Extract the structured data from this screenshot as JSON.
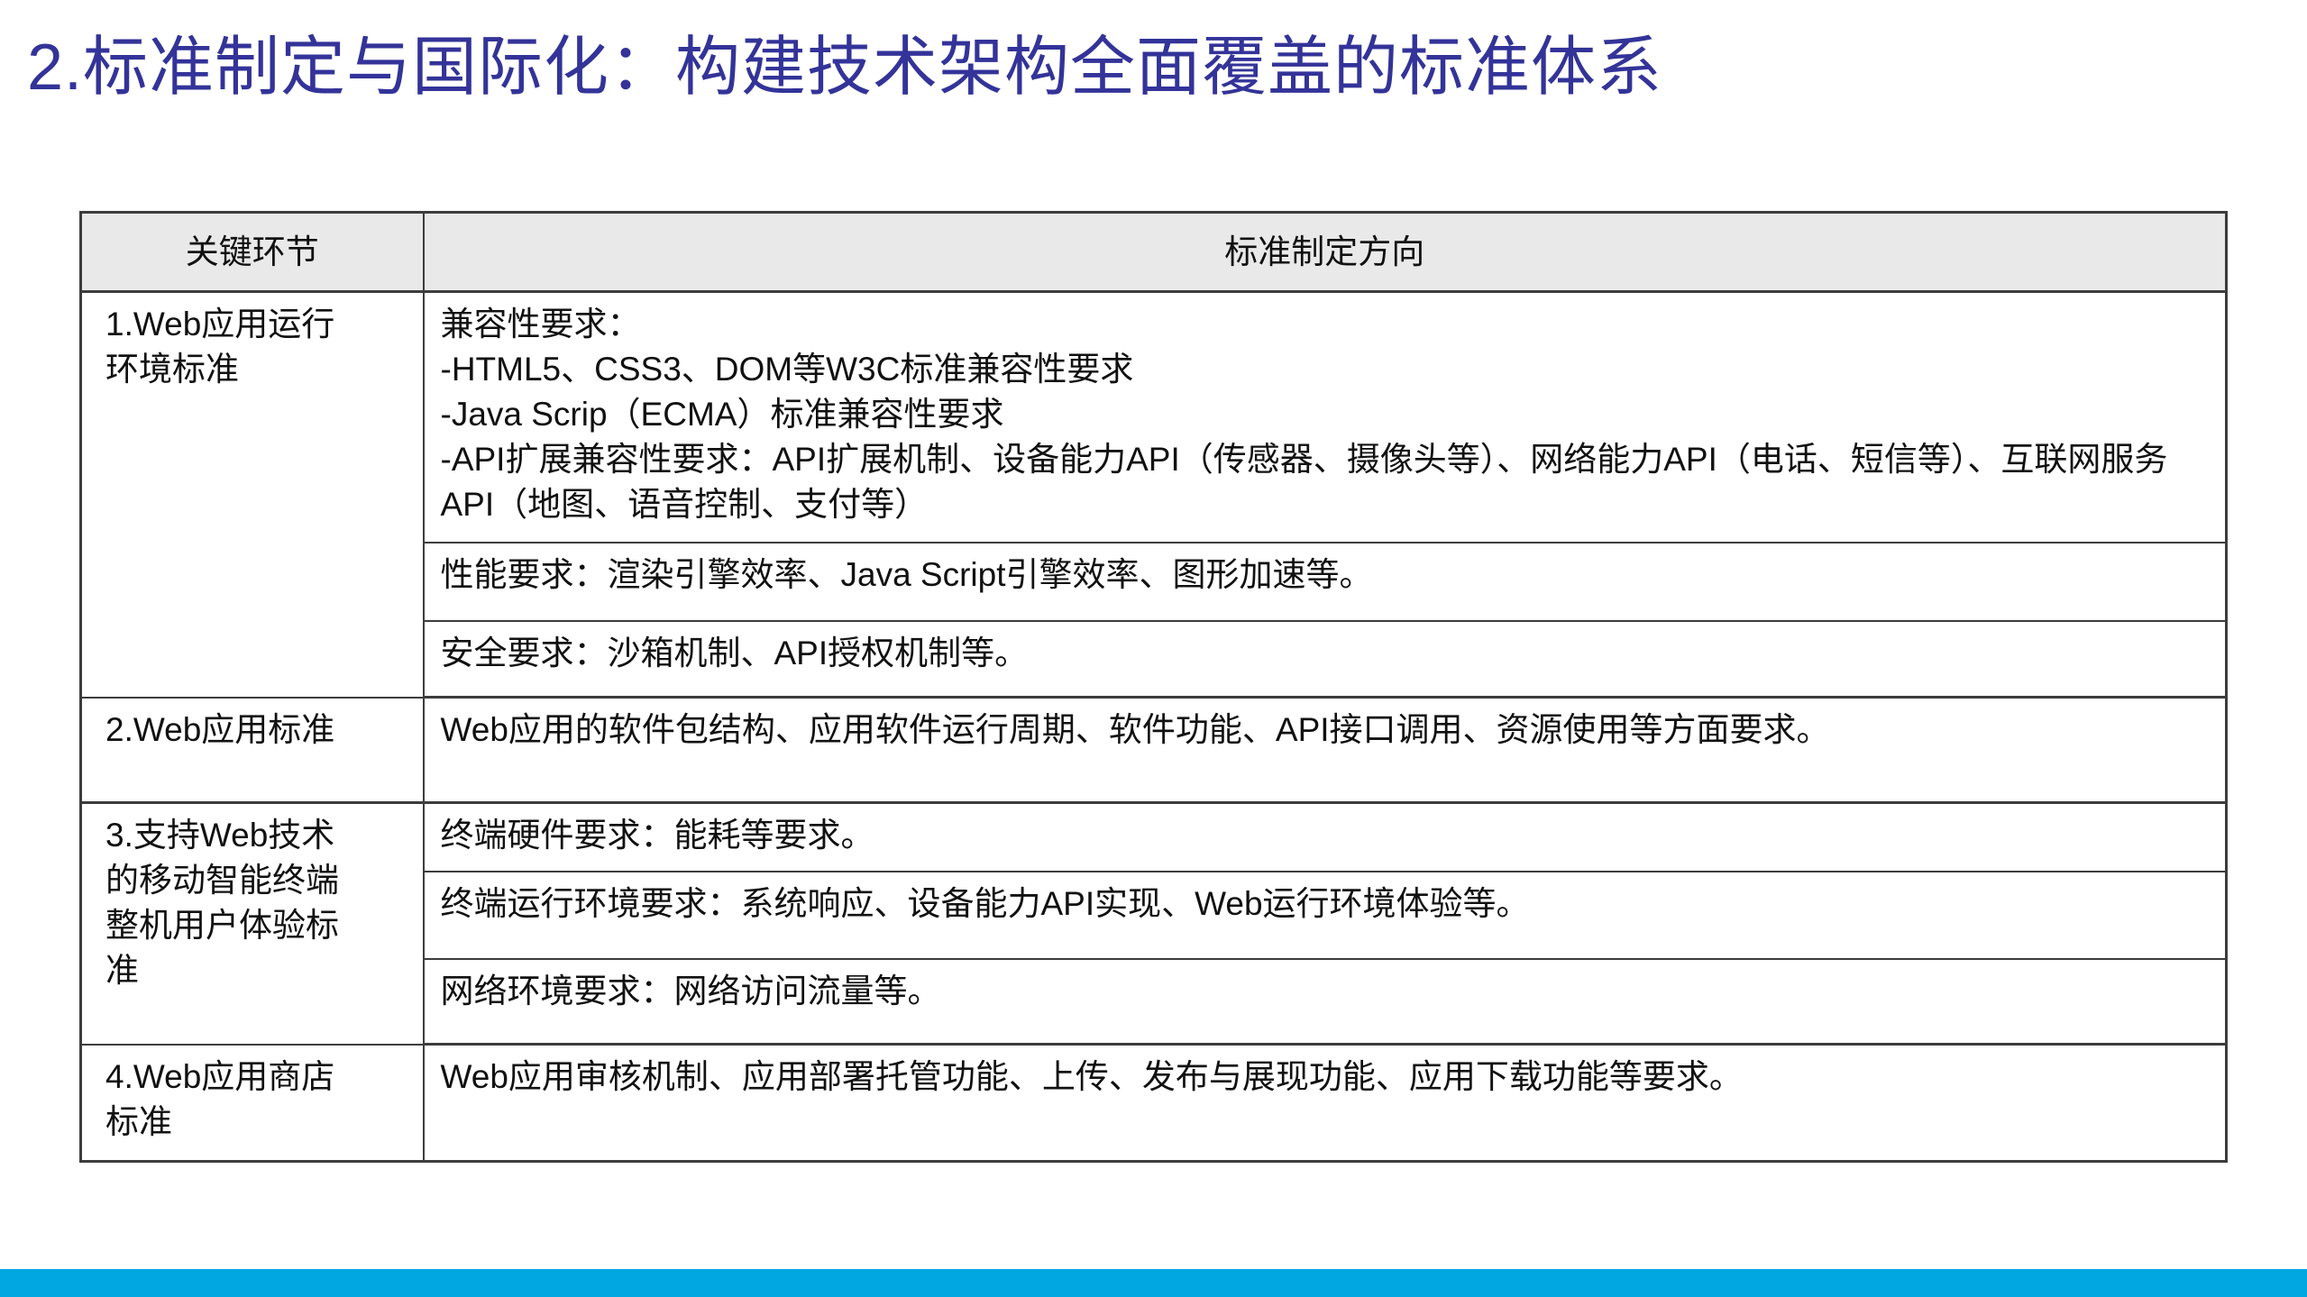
{
  "slide": {
    "title": "2.标准制定与国际化：构建技术架构全面覆盖的标准体系",
    "colors": {
      "title_text": "#333399",
      "accent_bar": "#00a7e1",
      "header_background": "#e9e9e9",
      "table_border": "#3c3c3c",
      "body_text": "#111111"
    },
    "table": {
      "headers": [
        "关键环节",
        "标准制定方向"
      ],
      "rows": [
        {
          "key": "1.Web应用运行\n环境标准",
          "details": [
            "兼容性要求：\n-HTML5、CSS3、DOM等W3C标准兼容性要求\n-Java Scrip（ECMA）标准兼容性要求\n-API扩展兼容性要求：API扩展机制、设备能力API（传感器、摄像头等）、网络能力API（电话、短信等）、互联网服务API（地图、语音控制、支付等）",
            "性能要求：渲染引擎效率、Java Script引擎效率、图形加速等。",
            "安全要求：沙箱机制、API授权机制等。"
          ]
        },
        {
          "key": "2.Web应用标准",
          "details": [
            "Web应用的软件包结构、应用软件运行周期、软件功能、API接口调用、资源使用等方面要求。"
          ]
        },
        {
          "key": "3.支持Web技术\n的移动智能终端\n整机用户体验标\n准",
          "details": [
            "终端硬件要求：能耗等要求。",
            "终端运行环境要求：系统响应、设备能力API实现、Web运行环境体验等。",
            "网络环境要求：网络访问流量等。"
          ]
        },
        {
          "key": "4.Web应用商店\n标准",
          "details": [
            "Web应用审核机制、应用部署托管功能、上传、发布与展现功能、应用下载功能等要求。"
          ]
        }
      ]
    }
  }
}
